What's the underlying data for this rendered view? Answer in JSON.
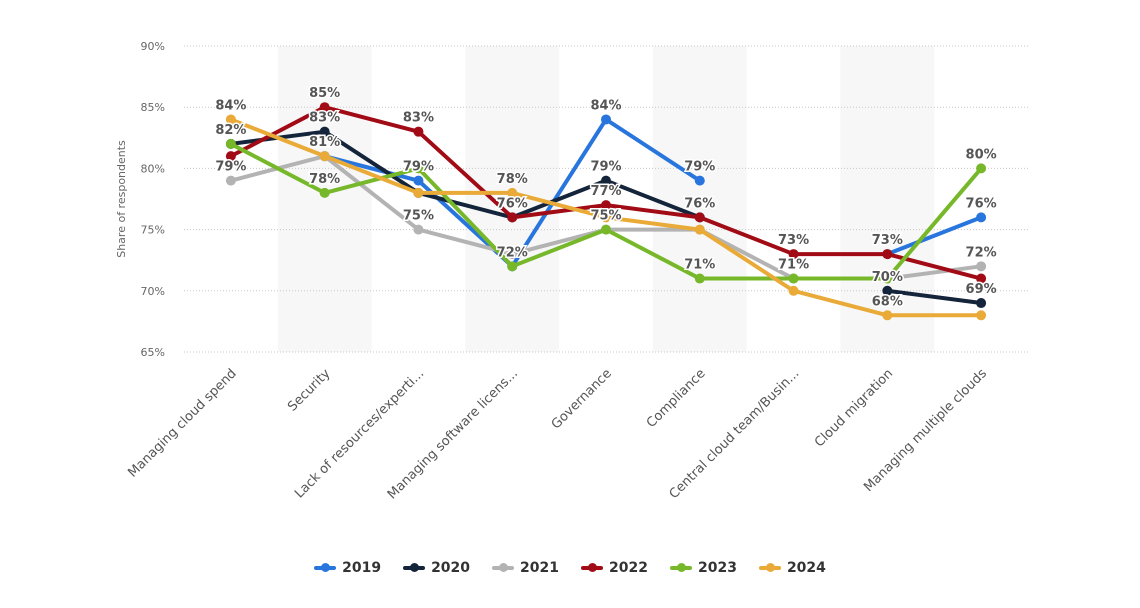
{
  "chart_data": {
    "type": "line",
    "ylabel": "Share of respondents",
    "ylim": [
      65,
      90
    ],
    "yticks": [
      "65%",
      "70%",
      "75%",
      "80%",
      "85%",
      "90%"
    ],
    "grid": true,
    "legend_position": "bottom",
    "categories": [
      "Managing cloud spend",
      "Security",
      "Lack of resources/experti...",
      "Managing software licens...",
      "Governance",
      "Compliance",
      "Central cloud team/Busin...",
      "Cloud migration",
      "Managing multiple clouds"
    ],
    "series": [
      {
        "name": "2019",
        "color": "#2876dd",
        "values": [
          null,
          81,
          79,
          72,
          84,
          79,
          null,
          73,
          76
        ]
      },
      {
        "name": "2020",
        "color": "#14243a",
        "values": [
          82,
          83,
          78,
          76,
          79,
          76,
          null,
          70,
          69
        ]
      },
      {
        "name": "2021",
        "color": "#b3b3b3",
        "values": [
          79,
          81,
          75,
          73,
          75,
          75,
          71,
          71,
          72
        ]
      },
      {
        "name": "2022",
        "color": "#a10b16",
        "values": [
          81,
          85,
          83,
          76,
          77,
          76,
          73,
          73,
          71
        ]
      },
      {
        "name": "2023",
        "color": "#76b82a",
        "values": [
          82,
          78,
          80,
          72,
          75,
          71,
          71,
          71,
          80
        ]
      },
      {
        "name": "2024",
        "color": "#e9aa38",
        "values": [
          84,
          81,
          78,
          78,
          76,
          75,
          70,
          68,
          68
        ]
      }
    ],
    "data_labels": [
      {
        "cat": 0,
        "value": 84,
        "text": "84%"
      },
      {
        "cat": 0,
        "value": 82,
        "text": "82%"
      },
      {
        "cat": 0,
        "value": 79,
        "text": "79%"
      },
      {
        "cat": 1,
        "value": 85,
        "text": "85%"
      },
      {
        "cat": 1,
        "value": 83,
        "text": "83%"
      },
      {
        "cat": 1,
        "value": 81,
        "text": "81%"
      },
      {
        "cat": 1,
        "value": 78,
        "text": "78%"
      },
      {
        "cat": 2,
        "value": 83,
        "text": "83%"
      },
      {
        "cat": 2,
        "value": 79,
        "text": "79%"
      },
      {
        "cat": 2,
        "value": 75,
        "text": "75%"
      },
      {
        "cat": 3,
        "value": 78,
        "text": "78%"
      },
      {
        "cat": 3,
        "value": 76,
        "text": "76%"
      },
      {
        "cat": 3,
        "value": 72,
        "text": "72%"
      },
      {
        "cat": 4,
        "value": 84,
        "text": "84%"
      },
      {
        "cat": 4,
        "value": 79,
        "text": "79%"
      },
      {
        "cat": 4,
        "value": 77,
        "text": "77%"
      },
      {
        "cat": 4,
        "value": 75,
        "text": "75%"
      },
      {
        "cat": 5,
        "value": 79,
        "text": "79%"
      },
      {
        "cat": 5,
        "value": 76,
        "text": "76%"
      },
      {
        "cat": 5,
        "value": 71,
        "text": "71%"
      },
      {
        "cat": 6,
        "value": 73,
        "text": "73%"
      },
      {
        "cat": 6,
        "value": 71,
        "text": "71%"
      },
      {
        "cat": 7,
        "value": 73,
        "text": "73%"
      },
      {
        "cat": 7,
        "value": 70,
        "text": "70%"
      },
      {
        "cat": 7,
        "value": 68,
        "text": "68%"
      },
      {
        "cat": 8,
        "value": 80,
        "text": "80%"
      },
      {
        "cat": 8,
        "value": 76,
        "text": "76%"
      },
      {
        "cat": 8,
        "value": 72,
        "text": "72%"
      },
      {
        "cat": 8,
        "value": 69,
        "text": "69%"
      }
    ]
  }
}
